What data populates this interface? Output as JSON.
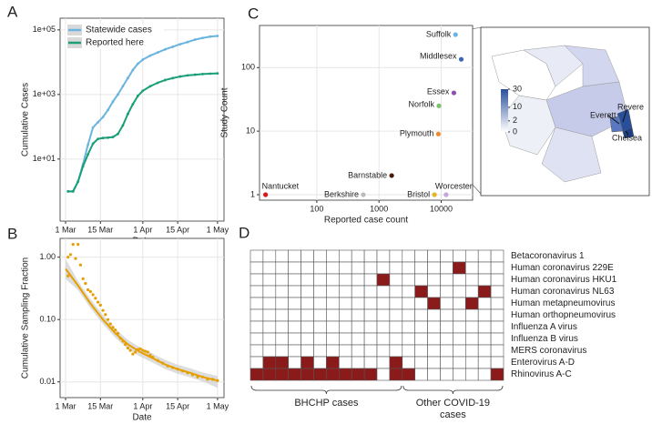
{
  "chart_data": [
    {
      "type": "line",
      "panel": "A",
      "x_label": "Date",
      "y_label": "Cumulative Cases",
      "yscale": "log",
      "grid": true,
      "legend": "top-left",
      "x": [
        1,
        3,
        5,
        7,
        9,
        11,
        13,
        15,
        17,
        19,
        21,
        23,
        25,
        27,
        29,
        31,
        34,
        37,
        40,
        43,
        46,
        49,
        52,
        55,
        58,
        61
      ],
      "xlim": [
        -2.2,
        63.6
      ],
      "xticks": [
        {
          "value": 0,
          "label": "1 Mar"
        },
        {
          "value": 14,
          "label": "15 Mar"
        },
        {
          "value": 31,
          "label": "1 Apr"
        },
        {
          "value": 45,
          "label": "15 Apr"
        },
        {
          "value": 61,
          "label": "1 May"
        }
      ],
      "ylim": [
        0.12,
        230000
      ],
      "yticks": [
        {
          "value": 10,
          "label": "1e+01"
        },
        {
          "value": 1000,
          "label": "1e+03"
        },
        {
          "value": 100000,
          "label": "1e+05"
        }
      ],
      "series": [
        {
          "name": "Statewide cases",
          "color": "#6ab4e0",
          "values": [
            1,
            1,
            2,
            7,
            28,
            95,
            138,
            200,
            330,
            600,
            1000,
            1800,
            3200,
            5700,
            8900,
            12000,
            16000,
            20000,
            25000,
            30000,
            36000,
            42000,
            50000,
            56000,
            62000,
            65000
          ]
        },
        {
          "name": "Reported here",
          "color": "#1a9e77",
          "values": [
            1,
            1,
            2,
            6,
            14,
            30,
            42,
            45,
            46,
            48,
            60,
            110,
            250,
            500,
            900,
            1300,
            1800,
            2300,
            2800,
            3200,
            3600,
            3900,
            4100,
            4300,
            4400,
            4500
          ]
        }
      ]
    },
    {
      "type": "scatter",
      "panel": "B",
      "x_label": "Date",
      "y_label": "Cumulative Sampling Fraction",
      "yscale": "log",
      "grid": true,
      "color": "#e69f00",
      "fit_color": "#e69f00",
      "xlim": [
        -2.2,
        63.6
      ],
      "xticks": [
        {
          "value": 0,
          "label": "1 Mar"
        },
        {
          "value": 14,
          "label": "15 Mar"
        },
        {
          "value": 31,
          "label": "1 Apr"
        },
        {
          "value": 45,
          "label": "15 Apr"
        },
        {
          "value": 61,
          "label": "1 May"
        }
      ],
      "ylim": [
        0.0056,
        2.0
      ],
      "yticks": [
        0.01,
        {
          "value": 0.1,
          "label": "0.10"
        },
        {
          "value": 1,
          "label": "1.00"
        }
      ],
      "x": [
        1,
        1,
        2,
        3,
        4,
        5,
        6,
        7,
        8,
        9,
        10,
        11,
        12,
        13,
        14,
        15,
        16,
        17,
        18,
        19,
        20,
        21,
        22,
        23,
        24,
        25,
        26,
        27,
        28,
        29,
        30,
        31,
        32,
        33,
        34,
        35,
        37,
        39,
        41,
        43,
        45,
        47,
        49,
        51,
        53,
        55,
        57,
        59,
        61
      ],
      "values": [
        1.0,
        0.5,
        1.1,
        1.6,
        0.95,
        1.6,
        0.75,
        0.45,
        0.38,
        0.3,
        0.28,
        0.25,
        0.22,
        0.19,
        0.17,
        0.14,
        0.12,
        0.1,
        0.085,
        0.075,
        0.068,
        0.06,
        0.05,
        0.045,
        0.04,
        0.035,
        0.032,
        0.028,
        0.03,
        0.033,
        0.034,
        0.032,
        0.031,
        0.03,
        0.027,
        0.025,
        0.022,
        0.02,
        0.018,
        0.017,
        0.016,
        0.015,
        0.014,
        0.013,
        0.012,
        0.012,
        0.011,
        0.011,
        0.0105
      ],
      "fit_x": [
        0,
        5,
        10,
        15,
        20,
        25,
        30,
        35,
        40,
        45,
        50,
        55,
        61
      ],
      "fit_values": [
        0.65,
        0.35,
        0.18,
        0.1,
        0.06,
        0.04,
        0.03,
        0.024,
        0.019,
        0.016,
        0.014,
        0.012,
        0.0105
      ]
    },
    {
      "type": "scatter",
      "panel": "C",
      "x_label": "Reported case count",
      "y_label": "Study Count",
      "xscale": "log",
      "yscale": "log",
      "grid": true,
      "xlim": [
        12,
        32000
      ],
      "xticks": [
        100,
        1000,
        10000
      ],
      "ylim": [
        0.82,
        460
      ],
      "yticks": [
        1,
        10,
        100
      ],
      "labels": [
        "Nantucket",
        "Berkshire",
        "Barnstable",
        "Bristol",
        "Worcester",
        "Plymouth",
        "Norfolk",
        "Essex",
        "Middlesex",
        "Suffolk"
      ],
      "x": [
        15,
        560,
        1600,
        7800,
        12000,
        9000,
        9200,
        16000,
        21000,
        17000
      ],
      "values": [
        1,
        1,
        2,
        1,
        1,
        9,
        25,
        40,
        135,
        330
      ],
      "colors": [
        "#d7191c",
        "#bbbbbb",
        "#4a1a0a",
        "#e6b422",
        "#c3a5e0",
        "#ef8a2b",
        "#7cc46a",
        "#8e4fb0",
        "#3a66b8",
        "#6ab4e0"
      ]
    },
    {
      "type": "heatmap",
      "panel": "D",
      "color": "#8b1a1a",
      "rows": [
        "Betacoronavirus 1",
        "Human coronavirus 229E",
        "Human coronavirus HKU1",
        "Human coronavirus NL63",
        "Human metapneumovirus",
        "Human orthopneumovirus",
        "Influenza A virus",
        "Influenza B virus",
        "MERS coronavirus",
        "Enterovirus A-D",
        "Rhinovirus A-C"
      ],
      "values": [
        [
          0,
          0,
          0,
          0,
          0,
          0,
          0,
          0,
          0,
          0,
          0,
          0,
          0,
          0,
          0,
          0,
          0,
          0,
          0,
          0
        ],
        [
          0,
          0,
          0,
          0,
          0,
          0,
          0,
          0,
          0,
          0,
          0,
          0,
          0,
          0,
          0,
          0,
          1,
          0,
          0,
          0
        ],
        [
          0,
          0,
          0,
          0,
          0,
          0,
          0,
          0,
          0,
          0,
          1,
          0,
          0,
          0,
          0,
          0,
          0,
          0,
          0,
          0
        ],
        [
          0,
          0,
          0,
          0,
          0,
          0,
          0,
          0,
          0,
          0,
          0,
          0,
          0,
          1,
          0,
          0,
          0,
          0,
          1,
          0
        ],
        [
          0,
          0,
          0,
          0,
          0,
          0,
          0,
          0,
          0,
          0,
          0,
          0,
          0,
          0,
          1,
          0,
          0,
          1,
          0,
          0
        ],
        [
          0,
          0,
          0,
          0,
          0,
          0,
          0,
          0,
          0,
          0,
          0,
          0,
          0,
          0,
          0,
          0,
          0,
          0,
          0,
          0
        ],
        [
          0,
          0,
          0,
          0,
          0,
          0,
          0,
          0,
          0,
          0,
          0,
          0,
          0,
          0,
          0,
          0,
          0,
          0,
          0,
          0
        ],
        [
          0,
          0,
          0,
          0,
          0,
          0,
          0,
          0,
          0,
          0,
          0,
          0,
          0,
          0,
          0,
          0,
          0,
          0,
          0,
          0
        ],
        [
          0,
          0,
          0,
          0,
          0,
          0,
          0,
          0,
          0,
          0,
          0,
          0,
          0,
          0,
          0,
          0,
          0,
          0,
          0,
          0
        ],
        [
          0,
          1,
          1,
          0,
          1,
          0,
          1,
          0,
          0,
          0,
          0,
          1,
          0,
          0,
          0,
          0,
          0,
          0,
          0,
          0
        ],
        [
          1,
          1,
          1,
          1,
          1,
          1,
          1,
          1,
          1,
          1,
          0,
          1,
          1,
          0,
          0,
          0,
          0,
          0,
          0,
          1
        ]
      ],
      "groups": [
        {
          "label": "BHCHP cases",
          "start": 0,
          "end": 11
        },
        {
          "label": "Other COVID-19 cases",
          "start": 12,
          "end": 19
        }
      ]
    }
  ],
  "map": {
    "colorbar_ticks": [
      30,
      10,
      2,
      0
    ],
    "colorbar_max": 30,
    "labels": [
      "Revere",
      "Everett",
      "Chelsea"
    ]
  }
}
